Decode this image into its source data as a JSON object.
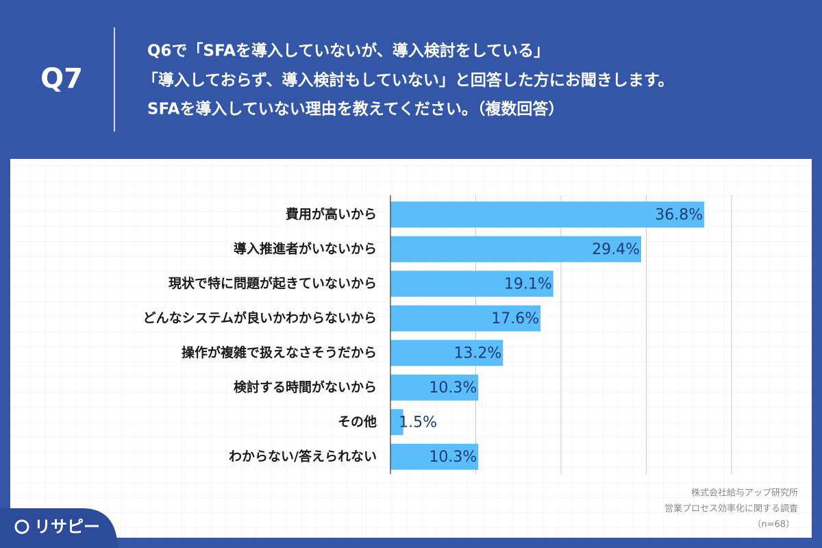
{
  "header": {
    "label": "Q7",
    "question": [
      "Q6で「SFAを導入していないが、導入検討をしている」",
      "「導入しておらず、導入検討もしていない」と回答した方にお聞きします。",
      "SFAを導入していない理由を教えてください。（複数回答）"
    ]
  },
  "chart_data": {
    "type": "bar",
    "orientation": "horizontal",
    "categories": [
      "費用が高いから",
      "導入推進者がいないから",
      "現状で特に問題が起きていないから",
      "どんなシステムが良いかわからないから",
      "操作が複雑で扱えなさそうだから",
      "検討する時間がないから",
      "その他",
      "わからない/答えられない"
    ],
    "values": [
      36.8,
      29.4,
      19.1,
      17.6,
      13.2,
      10.3,
      1.5,
      10.3
    ],
    "value_labels": [
      "36.8%",
      "29.4%",
      "19.1%",
      "17.6%",
      "13.2%",
      "10.3%",
      "1.5%",
      "10.3%"
    ],
    "color": "#5bbdf9",
    "xlim": [
      0,
      40
    ],
    "xticks": [
      0,
      10,
      20,
      30,
      40
    ],
    "grid": true
  },
  "footer": {
    "source": [
      "株式会社給与アップ研究所",
      "営業プロセス効率化に関する調査",
      "（n=68）"
    ],
    "logo": "リサピー"
  }
}
